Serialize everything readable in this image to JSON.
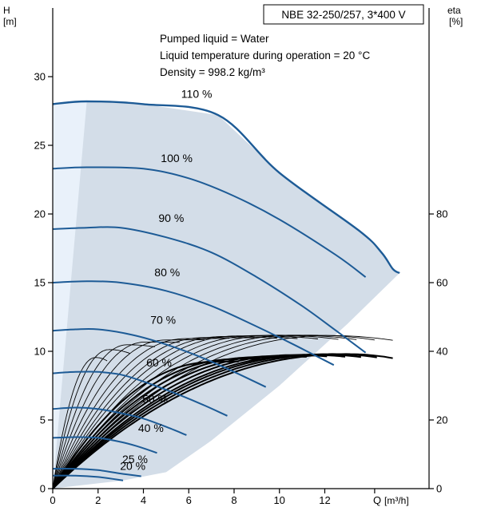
{
  "chart_data": {
    "type": "line",
    "title": "NBE 32-250/257, 3*400 V",
    "annotations": [
      "Pumped liquid = Water",
      "Liquid temperature during operation = 20 °C",
      "Density = 998.2 kg/m³"
    ],
    "left_axis": {
      "label": "H",
      "unit": "[m]",
      "range": [
        0,
        35
      ],
      "ticks": [
        "0",
        "5",
        "10",
        "15",
        "20",
        "25",
        "30"
      ]
    },
    "right_axis": {
      "label": "eta",
      "unit": "[%]",
      "range": [
        0,
        140
      ],
      "ticks": [
        "0",
        "20",
        "40",
        "60",
        "80"
      ]
    },
    "x_axis": {
      "label": "Q",
      "unit": "[m³/h]",
      "range": [
        0,
        16.6
      ],
      "ticks": [
        "0",
        "2",
        "4",
        "6",
        "8",
        "10",
        "12"
      ]
    },
    "speed_curves": [
      {
        "label": "110 %",
        "points": [
          [
            0,
            28.0
          ],
          [
            1.5,
            28.2
          ],
          [
            4,
            28.0
          ],
          [
            7.3,
            27.2
          ],
          [
            10,
            23.0
          ],
          [
            13.5,
            18.8
          ],
          [
            14.5,
            17.2
          ],
          [
            15.0,
            16.0
          ],
          [
            15.3,
            15.7
          ]
        ]
      },
      {
        "label": "100 %",
        "points": [
          [
            0,
            23.3
          ],
          [
            1.5,
            23.4
          ],
          [
            4,
            23.3
          ],
          [
            6,
            22.6
          ],
          [
            8,
            21.3
          ],
          [
            10,
            19.6
          ],
          [
            12.5,
            17.0
          ],
          [
            13.8,
            15.4
          ]
        ]
      },
      {
        "label": "90 %",
        "points": [
          [
            0,
            18.9
          ],
          [
            1.5,
            19.0
          ],
          [
            3,
            19.0
          ],
          [
            5,
            18.3
          ],
          [
            7,
            17.2
          ],
          [
            9,
            15.4
          ],
          [
            11,
            13.3
          ],
          [
            12.5,
            11.5
          ],
          [
            13.8,
            9.9
          ]
        ]
      },
      {
        "label": "80 %",
        "points": [
          [
            0,
            15.0
          ],
          [
            1.5,
            15.1
          ],
          [
            3,
            15.0
          ],
          [
            5,
            14.4
          ],
          [
            7,
            13.3
          ],
          [
            9,
            11.8
          ],
          [
            10.5,
            10.6
          ],
          [
            12.4,
            9.0
          ]
        ]
      },
      {
        "label": "70 %",
        "points": [
          [
            0,
            11.5
          ],
          [
            1,
            11.6
          ],
          [
            2,
            11.6
          ],
          [
            3.5,
            11.2
          ],
          [
            5,
            10.5
          ],
          [
            6.5,
            9.6
          ],
          [
            8,
            8.5
          ],
          [
            9.4,
            7.4
          ]
        ]
      },
      {
        "label": "60 %",
        "points": [
          [
            0,
            8.4
          ],
          [
            1,
            8.5
          ],
          [
            2,
            8.5
          ],
          [
            3,
            8.3
          ],
          [
            4,
            7.8
          ],
          [
            5,
            7.2
          ],
          [
            6.5,
            6.2
          ],
          [
            7.7,
            5.3
          ]
        ]
      },
      {
        "label": "50 %",
        "points": [
          [
            0,
            5.8
          ],
          [
            1,
            5.9
          ],
          [
            2,
            5.8
          ],
          [
            3,
            5.5
          ],
          [
            4,
            5.1
          ],
          [
            5,
            4.5
          ],
          [
            5.9,
            3.9
          ]
        ]
      },
      {
        "label": "40 %",
        "points": [
          [
            0,
            3.7
          ],
          [
            1,
            3.75
          ],
          [
            2,
            3.7
          ],
          [
            3,
            3.4
          ],
          [
            3.7,
            3.1
          ],
          [
            4.6,
            2.6
          ]
        ]
      },
      {
        "label": "25 %",
        "points": [
          [
            0,
            1.45
          ],
          [
            1,
            1.45
          ],
          [
            2,
            1.35
          ],
          [
            3,
            1.1
          ],
          [
            3.9,
            0.9
          ]
        ]
      },
      {
        "label": "20 %",
        "points": [
          [
            0,
            0.95
          ],
          [
            1,
            0.95
          ],
          [
            2,
            0.85
          ],
          [
            3.1,
            0.6
          ]
        ]
      }
    ],
    "efficiency_curves": {
      "thin": [
        {
          "max_q": 15.0,
          "peak_q": 12.2,
          "peak_eta": 44.6,
          "end_eta": 43.2
        },
        {
          "max_q": 14.2,
          "peak_q": 11.4,
          "peak_eta": 44.7,
          "end_eta": 43.3
        },
        {
          "max_q": 13.4,
          "peak_q": 10.6,
          "peak_eta": 44.7,
          "end_eta": 43.4
        },
        {
          "max_q": 12.6,
          "peak_q": 9.8,
          "peak_eta": 44.7,
          "end_eta": 43.5
        },
        {
          "max_q": 11.7,
          "peak_q": 9.0,
          "peak_eta": 44.6,
          "end_eta": 43.6
        },
        {
          "max_q": 10.8,
          "peak_q": 8.2,
          "peak_eta": 44.5,
          "end_eta": 43.7
        },
        {
          "max_q": 9.9,
          "peak_q": 7.5,
          "peak_eta": 44.3,
          "end_eta": 43.8
        },
        {
          "max_q": 8.9,
          "peak_q": 6.7,
          "peak_eta": 44.0,
          "end_eta": 43.9
        },
        {
          "max_q": 7.8,
          "peak_q": 5.9,
          "peak_eta": 43.7,
          "end_eta": 43.8
        },
        {
          "max_q": 6.7,
          "peak_q": 5.0,
          "peak_eta": 43.3,
          "end_eta": 43.4
        },
        {
          "max_q": 5.6,
          "peak_q": 4.1,
          "peak_eta": 42.7,
          "end_eta": 42.6
        },
        {
          "max_q": 4.5,
          "peak_q": 3.3,
          "peak_eta": 41.9,
          "end_eta": 41.3
        },
        {
          "max_q": 3.4,
          "peak_q": 2.5,
          "peak_eta": 40.5,
          "end_eta": 39.4
        },
        {
          "max_q": 2.4,
          "peak_q": 1.9,
          "peak_eta": 38.2,
          "end_eta": 37.2
        }
      ],
      "thick": [
        {
          "max_q": 15.0,
          "peak_q": 13.0,
          "peak_eta": 39.2,
          "end_eta": 38.0
        },
        {
          "max_q": 14.3,
          "peak_q": 12.4,
          "peak_eta": 39.2,
          "end_eta": 38.2
        },
        {
          "max_q": 13.6,
          "peak_q": 11.8,
          "peak_eta": 39.1,
          "end_eta": 38.3
        },
        {
          "max_q": 12.9,
          "peak_q": 11.3,
          "peak_eta": 39.0,
          "end_eta": 38.4
        },
        {
          "max_q": 12.1,
          "peak_q": 10.6,
          "peak_eta": 38.9,
          "end_eta": 38.5
        },
        {
          "max_q": 11.2,
          "peak_q": 9.8,
          "peak_eta": 38.6,
          "end_eta": 38.4
        },
        {
          "max_q": 10.3,
          "peak_q": 9.0,
          "peak_eta": 38.3,
          "end_eta": 38.2
        },
        {
          "max_q": 9.3,
          "peak_q": 8.2,
          "peak_eta": 37.8,
          "end_eta": 37.8
        },
        {
          "max_q": 8.2,
          "peak_q": 7.2,
          "peak_eta": 37.0,
          "end_eta": 37.0
        }
      ]
    },
    "operating_area": {
      "outer": [
        [
          0,
          28.0
        ],
        [
          1.5,
          28.2
        ],
        [
          4,
          28.0
        ],
        [
          7.3,
          27.2
        ],
        [
          10,
          23.0
        ],
        [
          13.5,
          18.8
        ],
        [
          14.5,
          17.2
        ],
        [
          15.0,
          16.0
        ],
        [
          15.3,
          15.7
        ],
        [
          13.0,
          12.0
        ],
        [
          10.0,
          7.5
        ],
        [
          7.0,
          3.5
        ],
        [
          5.0,
          1.2
        ],
        [
          3.1,
          0.6
        ],
        [
          0.5,
          0.1
        ],
        [
          0,
          0
        ]
      ],
      "inner_left_edge": [
        [
          1.5,
          28.2
        ],
        [
          0,
          0
        ]
      ],
      "colors": {
        "main": "#d3dde8",
        "left_band": "#e9f1fa",
        "curve": "#1d5b96",
        "eta": "#000000",
        "axis": "#000000"
      }
    }
  }
}
